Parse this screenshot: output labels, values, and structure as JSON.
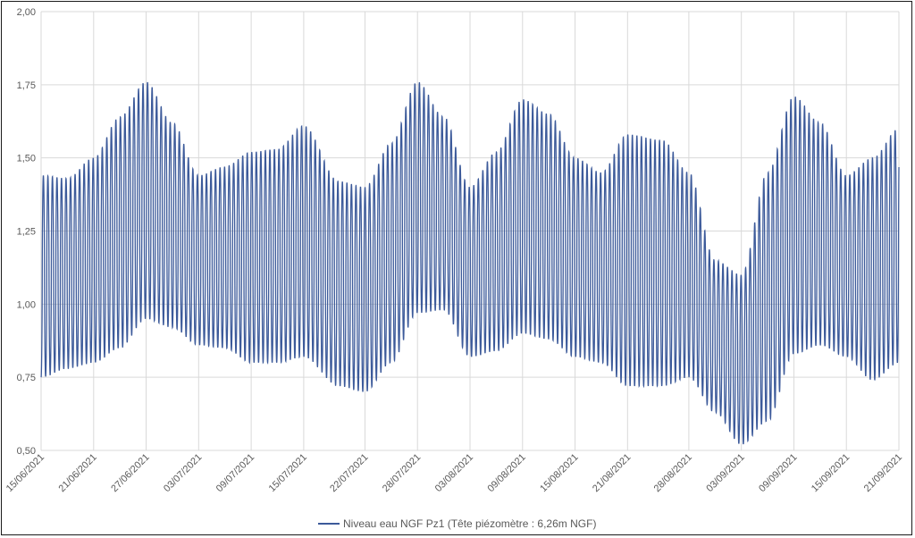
{
  "chart_data": {
    "type": "line",
    "title": "",
    "xlabel": "",
    "ylabel": "",
    "ylim": [
      0.5,
      2.0
    ],
    "yticks": [
      "0,50",
      "0,75",
      "1,00",
      "1,25",
      "1,50",
      "1,75",
      "2,00"
    ],
    "xlim": [
      "2021-06-15",
      "2021-09-21"
    ],
    "xticks": [
      "15/06/2021",
      "21/06/2021",
      "27/06/2021",
      "03/07/2021",
      "09/07/2021",
      "15/07/2021",
      "22/07/2021",
      "28/07/2021",
      "03/08/2021",
      "09/08/2021",
      "15/08/2021",
      "21/08/2021",
      "28/08/2021",
      "03/09/2021",
      "09/09/2021",
      "15/09/2021",
      "21/09/2021"
    ],
    "grid": true,
    "legend_position": "bottom",
    "series": [
      {
        "name": "Niveau eau NGF Pz1 (Tête piézomètre : 6,26m NGF)",
        "color": "#3c5a9a",
        "tidal_cycles_per_day": 1.932,
        "envelope": [
          {
            "date": "2021-06-15",
            "high": 1.44,
            "low": 0.75
          },
          {
            "date": "2021-06-18",
            "high": 1.43,
            "low": 0.78
          },
          {
            "date": "2021-06-21",
            "high": 1.5,
            "low": 0.8
          },
          {
            "date": "2021-06-24",
            "high": 1.64,
            "low": 0.85
          },
          {
            "date": "2021-06-27",
            "high": 1.76,
            "low": 0.95
          },
          {
            "date": "2021-06-30",
            "high": 1.62,
            "low": 0.92
          },
          {
            "date": "2021-07-03",
            "high": 1.44,
            "low": 0.86
          },
          {
            "date": "2021-07-06",
            "high": 1.47,
            "low": 0.85
          },
          {
            "date": "2021-07-09",
            "high": 1.52,
            "low": 0.8
          },
          {
            "date": "2021-07-12",
            "high": 1.53,
            "low": 0.8
          },
          {
            "date": "2021-07-15",
            "high": 1.61,
            "low": 0.82
          },
          {
            "date": "2021-07-19",
            "high": 1.42,
            "low": 0.72
          },
          {
            "date": "2021-07-22",
            "high": 1.4,
            "low": 0.7
          },
          {
            "date": "2021-07-25",
            "high": 1.55,
            "low": 0.8
          },
          {
            "date": "2021-07-28",
            "high": 1.76,
            "low": 0.97
          },
          {
            "date": "2021-07-31",
            "high": 1.64,
            "low": 0.98
          },
          {
            "date": "2021-08-03",
            "high": 1.4,
            "low": 0.82
          },
          {
            "date": "2021-08-06",
            "high": 1.52,
            "low": 0.84
          },
          {
            "date": "2021-08-09",
            "high": 1.7,
            "low": 0.9
          },
          {
            "date": "2021-08-12",
            "high": 1.65,
            "low": 0.88
          },
          {
            "date": "2021-08-15",
            "high": 1.5,
            "low": 0.82
          },
          {
            "date": "2021-08-18",
            "high": 1.45,
            "low": 0.8
          },
          {
            "date": "2021-08-21",
            "high": 1.58,
            "low": 0.72
          },
          {
            "date": "2021-08-25",
            "high": 1.56,
            "low": 0.72
          },
          {
            "date": "2021-08-28",
            "high": 1.45,
            "low": 0.75
          },
          {
            "date": "2021-08-31",
            "high": 1.15,
            "low": 0.63
          },
          {
            "date": "2021-09-03",
            "high": 1.1,
            "low": 0.52
          },
          {
            "date": "2021-09-06",
            "high": 1.45,
            "low": 0.6
          },
          {
            "date": "2021-09-09",
            "high": 1.71,
            "low": 0.83
          },
          {
            "date": "2021-09-12",
            "high": 1.62,
            "low": 0.86
          },
          {
            "date": "2021-09-15",
            "high": 1.44,
            "low": 0.82
          },
          {
            "date": "2021-09-18",
            "high": 1.5,
            "low": 0.74
          },
          {
            "date": "2021-09-21",
            "high": 1.6,
            "low": 0.8
          }
        ]
      }
    ]
  }
}
